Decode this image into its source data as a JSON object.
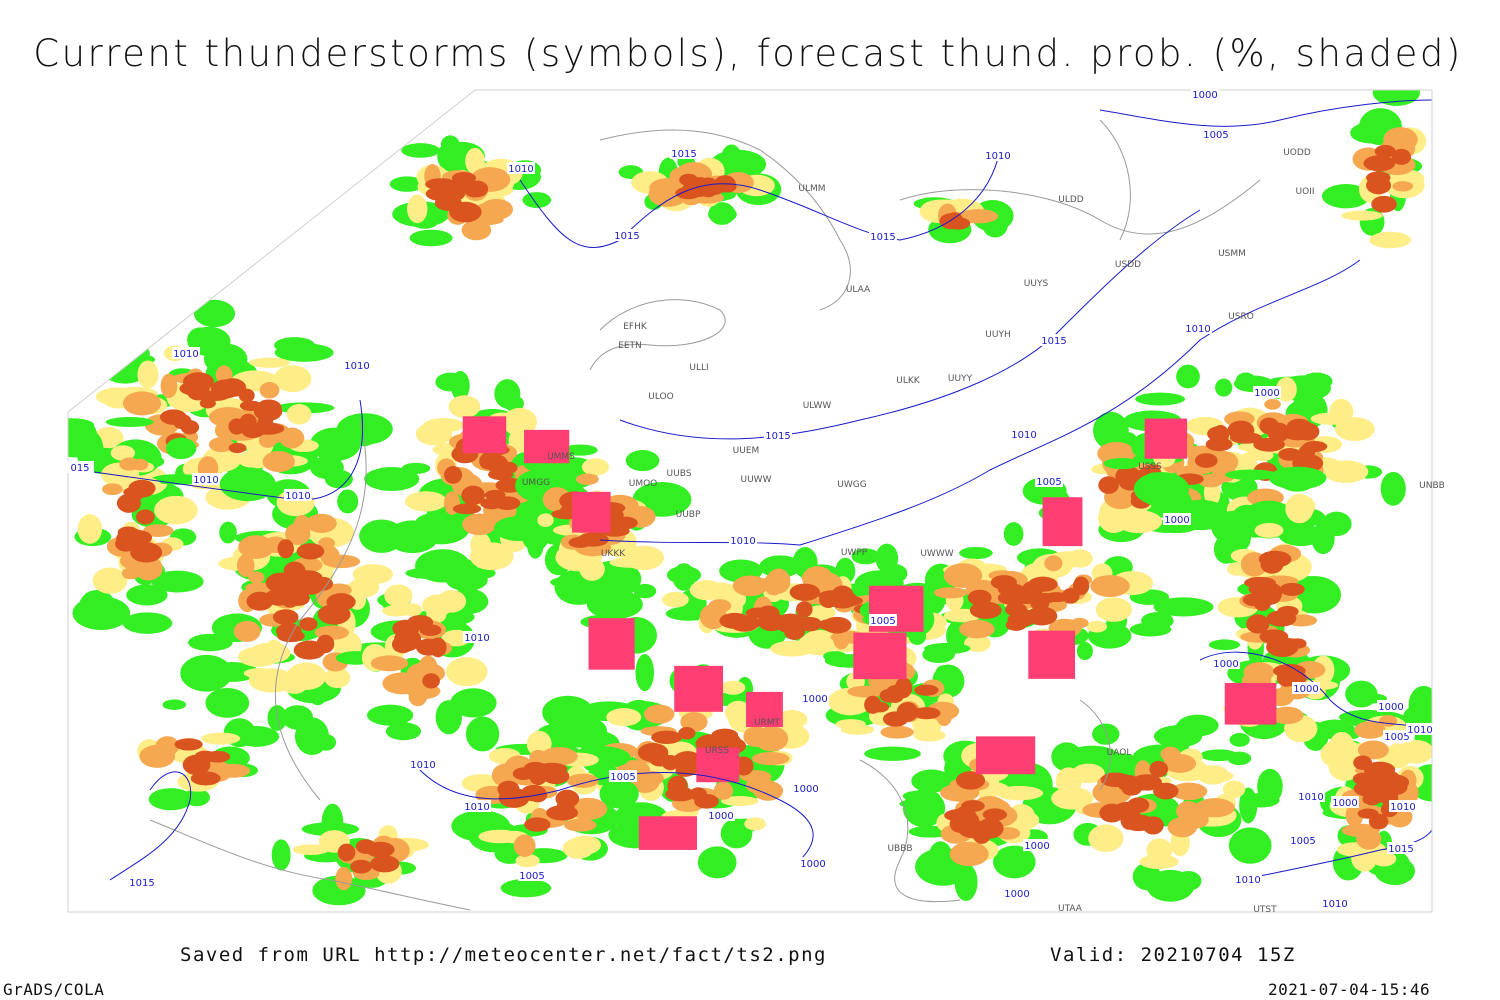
{
  "title": "Current thunderstorms (symbols), forecast thund. prob. (%, shaded)",
  "footer": {
    "source": "Saved from URL http://meteocenter.net/fact/ts2.png",
    "valid": "Valid: 20210704 15Z",
    "software": "GrADS/COLA",
    "timestamp": "2021-07-04-15:46"
  },
  "isobar_labels": [
    "1015",
    "1010",
    "1015",
    "1015",
    "1010",
    "1005",
    "1000",
    "1010",
    "1010",
    "015",
    "1010",
    "1010",
    "1015",
    "1015",
    "1010",
    "1010",
    "1005",
    "1000",
    "1000",
    "1010",
    "1005",
    "1010",
    "1000",
    "1000",
    "1000",
    "1000",
    "1005",
    "1010",
    "1010",
    "1005",
    "1000",
    "1000",
    "1010",
    "1010",
    "1000",
    "1010",
    "1005",
    "1015",
    "1000",
    "1000",
    "1005",
    "1015",
    "1000",
    "1010",
    "1010"
  ],
  "station_labels": [
    "ULMM",
    "ULDD",
    "UODD",
    "UOII",
    "USDD",
    "USMM",
    "ULAA",
    "UUYS",
    "EFHK",
    "EETN",
    "ULLI",
    "UUYH",
    "USRO",
    "ULOO",
    "ULKK",
    "UUYY",
    "ULWW",
    "UUEM",
    "UMMS",
    "UMGG",
    "UMOO",
    "UUBS",
    "UUWW",
    "UWGG",
    "UUBP",
    "UKKK",
    "UWPP",
    "UWWW",
    "USSS",
    "UNBB",
    "URMT",
    "URSS",
    "UBBB",
    "UTAA",
    "UTST",
    "UAOL"
  ]
}
